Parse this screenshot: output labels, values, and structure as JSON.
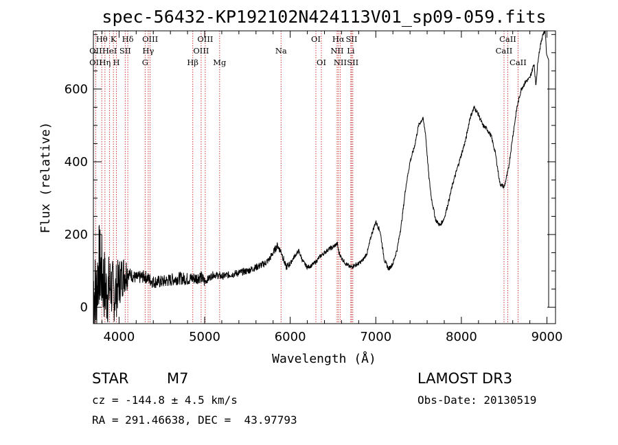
{
  "chart_data": {
    "type": "line",
    "title": "spec-56432-KP192102N424113V01_sp09-059.fits",
    "xlabel": "Wavelength (Å)",
    "ylabel": "Flux (relative)",
    "xlim": [
      3700,
      9100
    ],
    "ylim": [
      -45,
      760
    ],
    "xticks": [
      4000,
      5000,
      6000,
      7000,
      8000,
      9000
    ],
    "yticks": [
      0,
      200,
      400,
      600
    ],
    "x_minor_step": 200,
    "y_minor_step": 50,
    "spectrum": [
      [
        3700,
        60
      ],
      [
        3730,
        20
      ],
      [
        3760,
        120
      ],
      [
        3800,
        90
      ],
      [
        3850,
        40
      ],
      [
        3900,
        60
      ],
      [
        3950,
        35
      ],
      [
        4000,
        70
      ],
      [
        4050,
        90
      ],
      [
        4100,
        95
      ],
      [
        4200,
        80
      ],
      [
        4300,
        85
      ],
      [
        4400,
        70
      ],
      [
        4500,
        70
      ],
      [
        4600,
        75
      ],
      [
        4700,
        80
      ],
      [
        4800,
        78
      ],
      [
        4900,
        80
      ],
      [
        4950,
        85
      ],
      [
        5000,
        70
      ],
      [
        5100,
        90
      ],
      [
        5200,
        85
      ],
      [
        5300,
        90
      ],
      [
        5400,
        95
      ],
      [
        5500,
        100
      ],
      [
        5600,
        110
      ],
      [
        5700,
        120
      ],
      [
        5750,
        130
      ],
      [
        5800,
        150
      ],
      [
        5850,
        170
      ],
      [
        5900,
        150
      ],
      [
        5950,
        110
      ],
      [
        6000,
        120
      ],
      [
        6050,
        140
      ],
      [
        6100,
        155
      ],
      [
        6150,
        125
      ],
      [
        6200,
        110
      ],
      [
        6250,
        115
      ],
      [
        6300,
        125
      ],
      [
        6350,
        140
      ],
      [
        6400,
        150
      ],
      [
        6450,
        160
      ],
      [
        6500,
        165
      ],
      [
        6550,
        175
      ],
      [
        6570,
        150
      ],
      [
        6600,
        135
      ],
      [
        6650,
        120
      ],
      [
        6700,
        110
      ],
      [
        6750,
        115
      ],
      [
        6800,
        120
      ],
      [
        6850,
        130
      ],
      [
        6900,
        150
      ],
      [
        6950,
        200
      ],
      [
        7000,
        235
      ],
      [
        7050,
        210
      ],
      [
        7100,
        130
      ],
      [
        7150,
        105
      ],
      [
        7200,
        120
      ],
      [
        7250,
        160
      ],
      [
        7300,
        230
      ],
      [
        7350,
        330
      ],
      [
        7400,
        400
      ],
      [
        7450,
        440
      ],
      [
        7500,
        500
      ],
      [
        7550,
        520
      ],
      [
        7580,
        480
      ],
      [
        7600,
        420
      ],
      [
        7620,
        360
      ],
      [
        7650,
        300
      ],
      [
        7700,
        240
      ],
      [
        7750,
        225
      ],
      [
        7800,
        245
      ],
      [
        7850,
        290
      ],
      [
        7900,
        340
      ],
      [
        7950,
        380
      ],
      [
        8000,
        420
      ],
      [
        8050,
        460
      ],
      [
        8100,
        520
      ],
      [
        8150,
        550
      ],
      [
        8200,
        530
      ],
      [
        8250,
        500
      ],
      [
        8300,
        490
      ],
      [
        8350,
        470
      ],
      [
        8400,
        420
      ],
      [
        8450,
        340
      ],
      [
        8500,
        330
      ],
      [
        8550,
        380
      ],
      [
        8600,
        470
      ],
      [
        8650,
        550
      ],
      [
        8700,
        600
      ],
      [
        8750,
        620
      ],
      [
        8800,
        630
      ],
      [
        8850,
        670
      ],
      [
        8870,
        610
      ],
      [
        8900,
        690
      ],
      [
        8950,
        750
      ],
      [
        8980,
        760
      ],
      [
        9000,
        680
      ],
      [
        9020,
        0
      ]
    ],
    "spectral_lines": [
      {
        "label": "Hθ",
        "wavelength": 3798,
        "row": 1
      },
      {
        "label": "OII",
        "wavelength": 3727,
        "row": 2
      },
      {
        "label": "OII",
        "wavelength": 3727,
        "row": 3
      },
      {
        "label": "Hη",
        "wavelength": 3835,
        "row": 3
      },
      {
        "label": "K",
        "wavelength": 3934,
        "row": 1
      },
      {
        "label": "HeI",
        "wavelength": 3889,
        "row": 2
      },
      {
        "label": "H",
        "wavelength": 3969,
        "row": 3
      },
      {
        "label": "Hδ",
        "wavelength": 4102,
        "row": 1
      },
      {
        "label": "SII",
        "wavelength": 4072,
        "row": 2
      },
      {
        "label": "OIII",
        "wavelength": 4363,
        "row": 1
      },
      {
        "label": "Hγ",
        "wavelength": 4341,
        "row": 2
      },
      {
        "label": "G",
        "wavelength": 4305,
        "row": 3
      },
      {
        "label": "Hβ",
        "wavelength": 4861,
        "row": 3
      },
      {
        "label": "OIII",
        "wavelength": 5007,
        "row": 1
      },
      {
        "label": "OIII",
        "wavelength": 4959,
        "row": 2
      },
      {
        "label": "Mg",
        "wavelength": 5175,
        "row": 3
      },
      {
        "label": "Na",
        "wavelength": 5893,
        "row": 2
      },
      {
        "label": "OI",
        "wavelength": 6300,
        "row": 1
      },
      {
        "label": "OI",
        "wavelength": 6364,
        "row": 3
      },
      {
        "label": "Hα",
        "wavelength": 6563,
        "row": 1
      },
      {
        "label": "NII",
        "wavelength": 6548,
        "row": 2
      },
      {
        "label": "NII",
        "wavelength": 6584,
        "row": 3
      },
      {
        "label": "SII",
        "wavelength": 6717,
        "row": 1
      },
      {
        "label": "Li",
        "wavelength": 6708,
        "row": 2
      },
      {
        "label": "SII",
        "wavelength": 6731,
        "row": 3
      },
      {
        "label": "CaII",
        "wavelength": 8542,
        "row": 1
      },
      {
        "label": "CaII",
        "wavelength": 8498,
        "row": 2
      },
      {
        "label": "CaII",
        "wavelength": 8662,
        "row": 3
      }
    ],
    "line_color": "#cc3333",
    "spectrum_color": "#000000"
  },
  "info": {
    "object_type": "STAR",
    "subclass": "M7",
    "survey": "LAMOST DR3",
    "cz": "cz = -144.8 ± 4.5 km/s",
    "obs_date": "Obs-Date: 20130519",
    "coords": "RA = 291.46638, DEC =  43.97793"
  }
}
